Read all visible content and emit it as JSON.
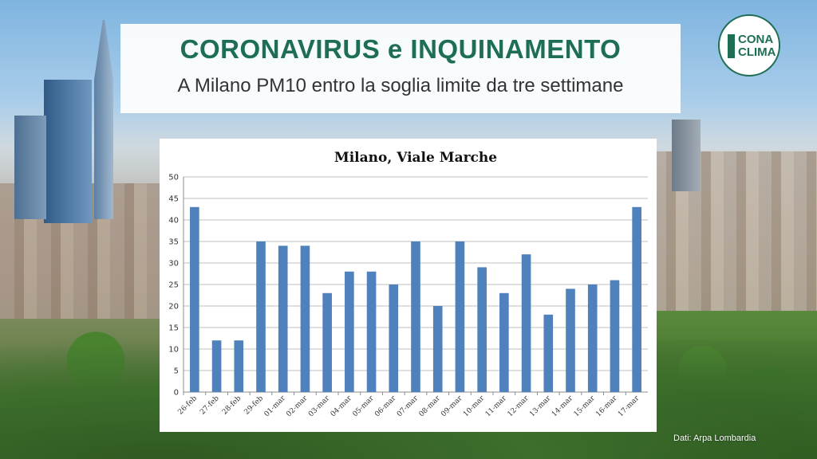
{
  "header": {
    "title": "CORONAVIRUS e INQUINAMENTO",
    "subtitle": "A Milano PM10 entro la soglia limite da tre settimane"
  },
  "logo": {
    "line1": "CONA",
    "line2": "CLIMA"
  },
  "source": "Dati: Arpa Lombardia",
  "colors": {
    "accent": "#1e6e55",
    "bar": "#4f81bd",
    "grid": "#bfbfbf"
  },
  "chart_data": {
    "type": "bar",
    "title": "Milano, Viale Marche",
    "xlabel": "",
    "ylabel": "",
    "ylim": [
      0,
      50
    ],
    "yticks": [
      0,
      5,
      10,
      15,
      20,
      25,
      30,
      35,
      40,
      45,
      50
    ],
    "grid": true,
    "categories": [
      "26-feb",
      "27-feb",
      "28-feb",
      "29-feb",
      "01-mar",
      "02-mar",
      "03-mar",
      "04-mar",
      "05-mar",
      "06-mar",
      "07-mar",
      "08-mar",
      "09-mar",
      "10-mar",
      "11-mar",
      "12-mar",
      "13-mar",
      "14-mar",
      "15-mar",
      "16-mar",
      "17-mar"
    ],
    "values": [
      43,
      12,
      12,
      35,
      34,
      34,
      23,
      28,
      28,
      25,
      35,
      20,
      35,
      29,
      23,
      32,
      18,
      24,
      25,
      26,
      43
    ]
  }
}
